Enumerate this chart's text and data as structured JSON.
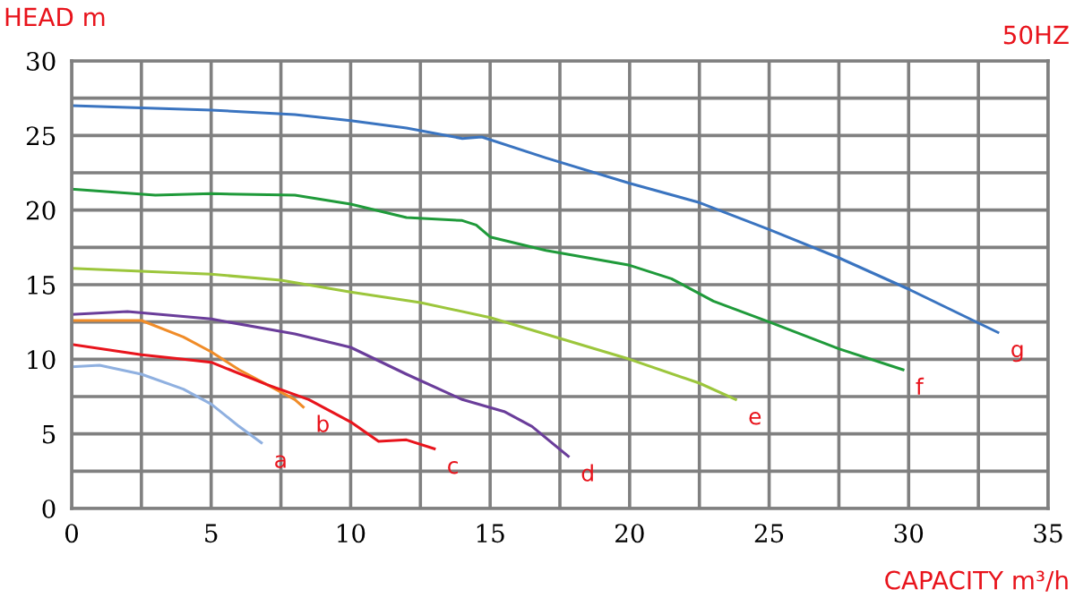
{
  "chart_data": {
    "type": "line",
    "xlabel": "CAPACITY m³/h",
    "ylabel": "HEAD m",
    "annotations": [
      "50HZ"
    ],
    "xlim": [
      0,
      35
    ],
    "ylim": [
      0,
      30
    ],
    "xticks": [
      0,
      {
        "value": 2.5,
        "label": null
      },
      5,
      {
        "value": 7.5,
        "label": null
      },
      10,
      {
        "value": 12.5,
        "label": null
      },
      15,
      {
        "value": 17.5,
        "label": null
      },
      20,
      {
        "value": 22.5,
        "label": null
      },
      25,
      {
        "value": 27.5,
        "label": null
      },
      30,
      {
        "value": 32.5,
        "label": null
      },
      35
    ],
    "yticks": [
      0,
      {
        "value": 2.5,
        "label": null
      },
      5,
      {
        "value": 7.5,
        "label": null
      },
      10,
      {
        "value": 12.5,
        "label": null
      },
      15,
      {
        "value": 17.5,
        "label": null
      },
      20,
      {
        "value": 22.5,
        "label": null
      },
      25,
      {
        "value": 27.5,
        "label": null
      },
      30
    ],
    "grid": true,
    "legend": false,
    "marker": "none",
    "line_style": "solid",
    "series": [
      {
        "name": "a",
        "color": "#8fb0e0",
        "x": [
          0,
          1,
          2.5,
          4,
          5,
          6,
          6.8
        ],
        "values": [
          9.5,
          9.6,
          9.0,
          8.0,
          7.0,
          5.5,
          4.4
        ]
      },
      {
        "name": "b",
        "color": "#f08c28",
        "x": [
          0,
          2.5,
          4,
          5,
          6,
          7,
          8,
          8.3
        ],
        "values": [
          12.6,
          12.6,
          11.5,
          10.5,
          9.3,
          8.3,
          7.3,
          6.8
        ]
      },
      {
        "name": "c",
        "color": "#e8141c",
        "x": [
          0,
          2.5,
          4,
          5,
          7,
          8.5,
          10,
          11,
          12,
          13
        ],
        "values": [
          11.0,
          10.3,
          10.0,
          9.8,
          8.3,
          7.3,
          5.8,
          4.5,
          4.6,
          4.0
        ]
      },
      {
        "name": "d",
        "color": "#6a3d9a",
        "x": [
          0,
          2,
          5,
          8,
          10,
          12,
          14,
          15.5,
          16.5,
          17.8
        ],
        "values": [
          13.0,
          13.2,
          12.7,
          11.7,
          10.8,
          9.0,
          7.3,
          6.5,
          5.5,
          3.5
        ]
      },
      {
        "name": "e",
        "color": "#9cc63c",
        "x": [
          0,
          5,
          7.5,
          10,
          12.5,
          15,
          17.5,
          20,
          22.5,
          23.8
        ],
        "values": [
          16.1,
          15.7,
          15.3,
          14.5,
          13.8,
          12.8,
          11.4,
          10.0,
          8.4,
          7.3
        ]
      },
      {
        "name": "f",
        "color": "#1f9a3a",
        "x": [
          0,
          3,
          5,
          8,
          10,
          12,
          14,
          14.5,
          15,
          17,
          20,
          21.5,
          23,
          25,
          27.5,
          29.8
        ],
        "values": [
          21.4,
          21.0,
          21.1,
          21.0,
          20.4,
          19.5,
          19.3,
          19.0,
          18.2,
          17.3,
          16.3,
          15.4,
          13.9,
          12.5,
          10.7,
          9.3
        ]
      },
      {
        "name": "g",
        "color": "#3a74c0",
        "x": [
          0,
          5,
          8,
          10,
          12,
          14,
          14.7,
          17,
          20,
          22.5,
          25,
          27.5,
          30,
          33.2
        ],
        "values": [
          27.0,
          26.7,
          26.4,
          26.0,
          25.5,
          24.8,
          24.9,
          23.5,
          21.8,
          20.5,
          18.7,
          16.8,
          14.7,
          11.8
        ]
      }
    ]
  }
}
